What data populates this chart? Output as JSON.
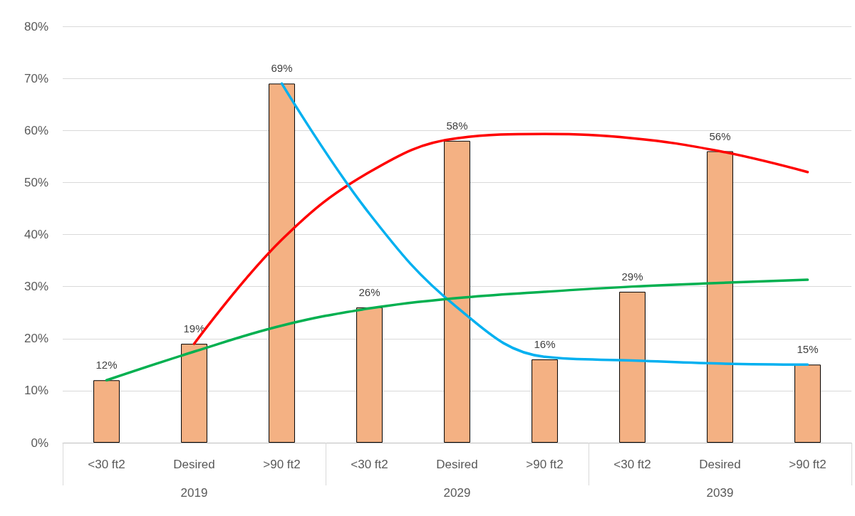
{
  "chart_data": {
    "type": "bar",
    "categories": [
      "<30 ft2",
      "Desired",
      ">90 ft2",
      "<30 ft2",
      "Desired",
      ">90 ft2",
      "<30 ft2",
      "Desired",
      ">90 ft2"
    ],
    "annotations": [
      "2019",
      "2029",
      "2039"
    ],
    "series": [
      {
        "color": "#f4b183",
        "values": [
          12,
          19,
          69,
          26,
          58,
          16,
          29,
          56,
          15
        ],
        "value_labels": [
          "12%",
          "19%",
          "69%",
          "26%",
          "58%",
          "16%",
          "29%",
          "56%",
          "15%"
        ]
      },
      {
        "type": "line",
        "color": "#ff0000",
        "values": [
          null,
          19,
          39,
          52,
          58.5,
          59.3,
          58.5,
          56,
          52
        ]
      },
      {
        "type": "line",
        "color": "#00b0f0",
        "values": [
          null,
          null,
          69,
          44,
          26,
          16.5,
          15.8,
          15.2,
          15
        ]
      },
      {
        "type": "line",
        "color": "#00b050",
        "values": [
          12,
          17.5,
          22.5,
          25.8,
          27.8,
          29,
          30,
          30.7,
          31.3
        ]
      }
    ],
    "ylim": [
      0,
      80
    ],
    "yticks": [
      {
        "value": 0,
        "label": "0%"
      },
      {
        "value": 10,
        "label": "10%"
      },
      {
        "value": 20,
        "label": "20%"
      },
      {
        "value": 30,
        "label": "30%"
      },
      {
        "value": 40,
        "label": "40%"
      },
      {
        "value": 50,
        "label": "50%"
      },
      {
        "value": 60,
        "label": "60%"
      },
      {
        "value": 70,
        "label": "70%"
      },
      {
        "value": 80,
        "label": "80%"
      }
    ],
    "grid": "y",
    "marker": "none"
  }
}
